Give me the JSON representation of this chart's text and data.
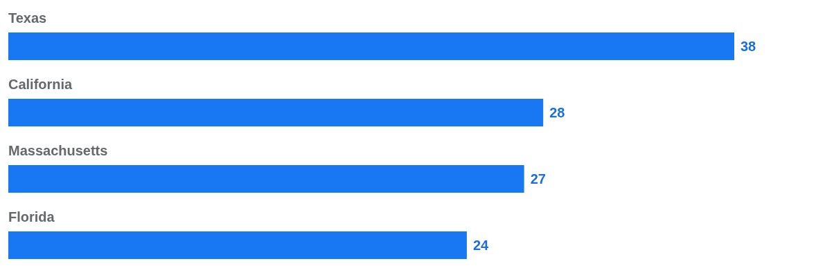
{
  "chart_data": {
    "type": "bar",
    "orientation": "horizontal",
    "categories": [
      "Texas",
      "California",
      "Massachusetts",
      "Florida"
    ],
    "values": [
      38,
      28,
      27,
      24
    ],
    "color": "#1877f2",
    "data_labels": true
  }
}
